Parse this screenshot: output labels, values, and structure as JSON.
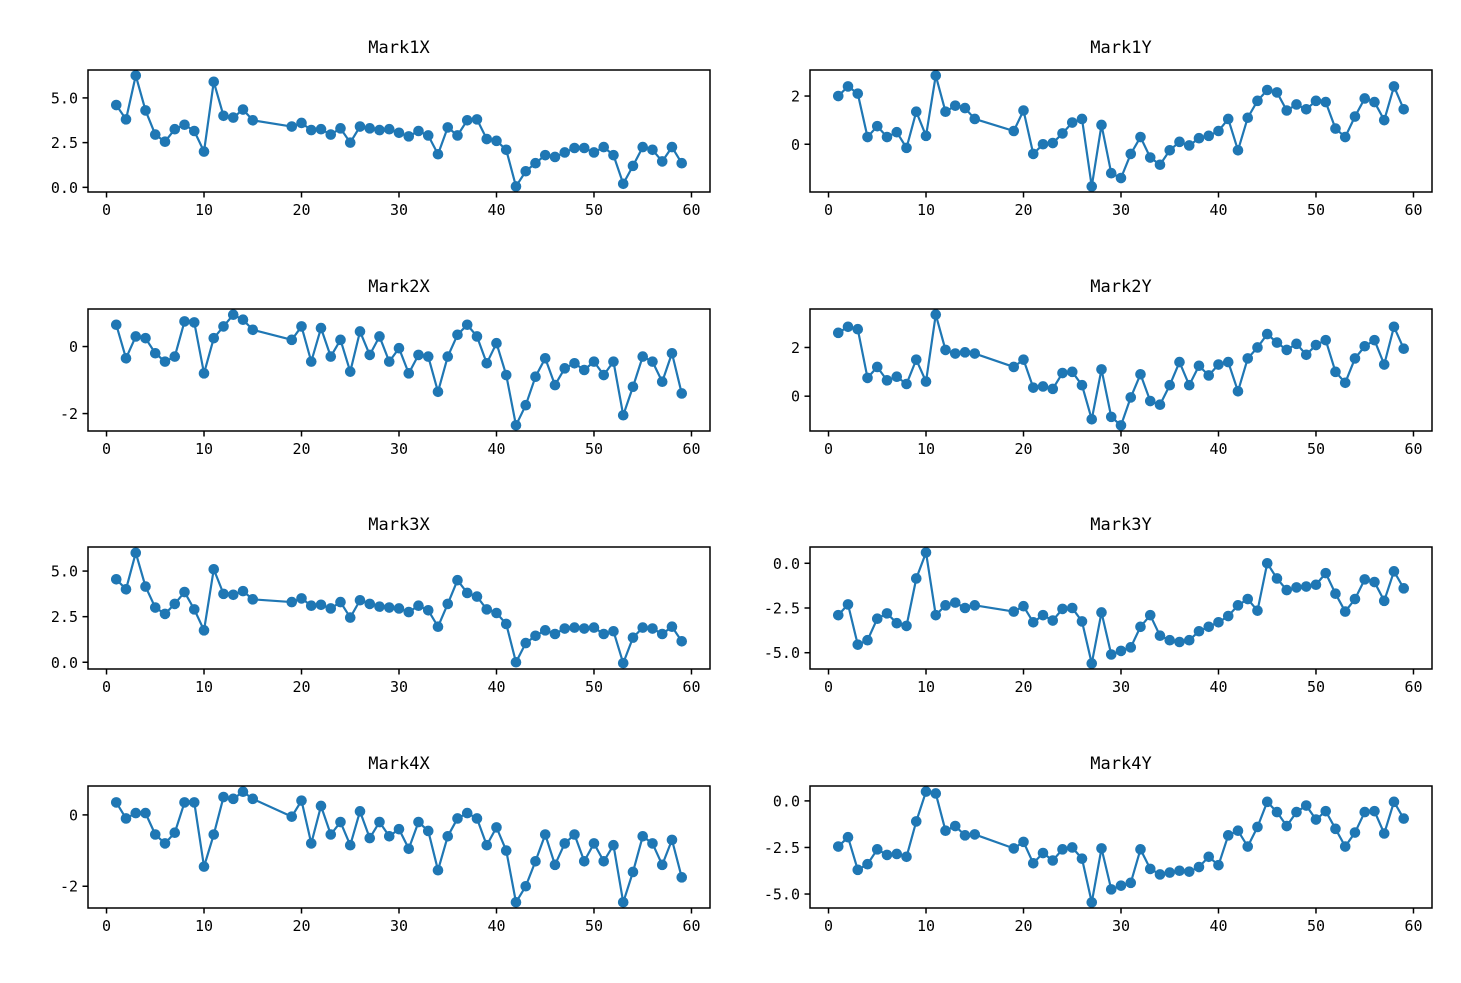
{
  "figure": {
    "background": "#ffffff",
    "accent_color": "#1f77b4",
    "axis_color": "#000000"
  },
  "chart_data": [
    {
      "type": "line",
      "title": "Mark1X",
      "row": 0,
      "col": 0,
      "grid": false,
      "legend": null,
      "xlim": [
        -1.9,
        61.9
      ],
      "ylim": [
        -0.26,
        6.56
      ],
      "xticks": [
        0,
        10,
        20,
        30,
        40,
        50,
        60
      ],
      "xtick_labels": [
        "0",
        "10",
        "20",
        "30",
        "40",
        "50",
        "60"
      ],
      "yticks": [
        0.0,
        2.5,
        5.0
      ],
      "ytick_labels": [
        "0.0",
        "2.5",
        "5.0"
      ],
      "x": [
        1,
        2,
        3,
        4,
        5,
        6,
        7,
        8,
        9,
        10,
        11,
        12,
        13,
        14,
        15,
        19,
        20,
        21,
        22,
        23,
        24,
        25,
        26,
        27,
        28,
        29,
        30,
        31,
        32,
        33,
        34,
        35,
        36,
        37,
        38,
        39,
        40,
        41,
        42,
        43,
        44,
        45,
        46,
        47,
        48,
        49,
        50,
        51,
        52,
        53,
        54,
        55,
        56,
        57,
        58,
        59
      ],
      "y": [
        4.6,
        3.8,
        6.25,
        4.3,
        2.95,
        2.55,
        3.25,
        3.5,
        3.15,
        2.0,
        5.9,
        4.0,
        3.9,
        4.35,
        3.75,
        3.4,
        3.6,
        3.2,
        3.25,
        2.95,
        3.3,
        2.5,
        3.4,
        3.3,
        3.2,
        3.25,
        3.05,
        2.85,
        3.15,
        2.9,
        1.85,
        3.35,
        2.9,
        3.75,
        3.8,
        2.7,
        2.6,
        2.1,
        0.05,
        0.9,
        1.35,
        1.8,
        1.7,
        1.95,
        2.2,
        2.2,
        1.95,
        2.25,
        1.8,
        0.2,
        1.2,
        2.25,
        2.1,
        1.45,
        2.25,
        1.35
      ]
    },
    {
      "type": "line",
      "title": "Mark1Y",
      "row": 0,
      "col": 1,
      "grid": false,
      "legend": null,
      "xlim": [
        -1.9,
        61.9
      ],
      "ylim": [
        -1.98,
        3.08
      ],
      "xticks": [
        0,
        10,
        20,
        30,
        40,
        50,
        60
      ],
      "xtick_labels": [
        "0",
        "10",
        "20",
        "30",
        "40",
        "50",
        "60"
      ],
      "yticks": [
        0,
        2
      ],
      "ytick_labels": [
        "0",
        "2"
      ],
      "x": [
        1,
        2,
        3,
        4,
        5,
        6,
        7,
        8,
        9,
        10,
        11,
        12,
        13,
        14,
        15,
        19,
        20,
        21,
        22,
        23,
        24,
        25,
        26,
        27,
        28,
        29,
        30,
        31,
        32,
        33,
        34,
        35,
        36,
        37,
        38,
        39,
        40,
        41,
        42,
        43,
        44,
        45,
        46,
        47,
        48,
        49,
        50,
        51,
        52,
        53,
        54,
        55,
        56,
        57,
        58,
        59
      ],
      "y": [
        2.0,
        2.4,
        2.1,
        0.3,
        0.75,
        0.3,
        0.5,
        -0.15,
        1.35,
        0.35,
        2.85,
        1.35,
        1.6,
        1.5,
        1.05,
        0.55,
        1.4,
        -0.4,
        0.0,
        0.05,
        0.45,
        0.9,
        1.05,
        -1.75,
        0.8,
        -1.2,
        -1.4,
        -0.4,
        0.3,
        -0.55,
        -0.85,
        -0.25,
        0.1,
        -0.05,
        0.25,
        0.35,
        0.55,
        1.05,
        -0.25,
        1.1,
        1.8,
        2.25,
        2.15,
        1.4,
        1.65,
        1.45,
        1.8,
        1.75,
        0.65,
        0.3,
        1.15,
        1.9,
        1.75,
        1.0,
        2.4,
        1.45
      ]
    },
    {
      "type": "line",
      "title": "Mark2X",
      "row": 1,
      "col": 0,
      "grid": false,
      "legend": null,
      "xlim": [
        -1.9,
        61.9
      ],
      "ylim": [
        -2.52,
        1.12
      ],
      "xticks": [
        0,
        10,
        20,
        30,
        40,
        50,
        60
      ],
      "xtick_labels": [
        "0",
        "10",
        "20",
        "30",
        "40",
        "50",
        "60"
      ],
      "yticks": [
        -2,
        0
      ],
      "ytick_labels": [
        "-2",
        "0"
      ],
      "x": [
        1,
        2,
        3,
        4,
        5,
        6,
        7,
        8,
        9,
        10,
        11,
        12,
        13,
        14,
        15,
        19,
        20,
        21,
        22,
        23,
        24,
        25,
        26,
        27,
        28,
        29,
        30,
        31,
        32,
        33,
        34,
        35,
        36,
        37,
        38,
        39,
        40,
        41,
        42,
        43,
        44,
        45,
        46,
        47,
        48,
        49,
        50,
        51,
        52,
        53,
        54,
        55,
        56,
        57,
        58,
        59
      ],
      "y": [
        0.65,
        -0.35,
        0.3,
        0.25,
        -0.2,
        -0.45,
        -0.3,
        0.75,
        0.72,
        -0.8,
        0.25,
        0.6,
        0.95,
        0.8,
        0.5,
        0.2,
        0.6,
        -0.45,
        0.55,
        -0.3,
        0.2,
        -0.75,
        0.45,
        -0.25,
        0.3,
        -0.45,
        -0.05,
        -0.8,
        -0.25,
        -0.3,
        -1.35,
        -0.3,
        0.35,
        0.65,
        0.3,
        -0.5,
        0.1,
        -0.85,
        -2.35,
        -1.75,
        -0.9,
        -0.35,
        -1.15,
        -0.65,
        -0.5,
        -0.7,
        -0.45,
        -0.85,
        -0.45,
        -2.05,
        -1.2,
        -0.3,
        -0.45,
        -1.05,
        -0.2,
        -1.4
      ]
    },
    {
      "type": "line",
      "title": "Mark2Y",
      "row": 1,
      "col": 1,
      "grid": false,
      "legend": null,
      "xlim": [
        -1.9,
        61.9
      ],
      "ylim": [
        -1.43,
        3.58
      ],
      "xticks": [
        0,
        10,
        20,
        30,
        40,
        50,
        60
      ],
      "xtick_labels": [
        "0",
        "10",
        "20",
        "30",
        "40",
        "50",
        "60"
      ],
      "yticks": [
        0,
        2
      ],
      "ytick_labels": [
        "0",
        "2"
      ],
      "x": [
        1,
        2,
        3,
        4,
        5,
        6,
        7,
        8,
        9,
        10,
        11,
        12,
        13,
        14,
        15,
        19,
        20,
        21,
        22,
        23,
        24,
        25,
        26,
        27,
        28,
        29,
        30,
        31,
        32,
        33,
        34,
        35,
        36,
        37,
        38,
        39,
        40,
        41,
        42,
        43,
        44,
        45,
        46,
        47,
        48,
        49,
        50,
        51,
        52,
        53,
        54,
        55,
        56,
        57,
        58,
        59
      ],
      "y": [
        2.6,
        2.85,
        2.75,
        0.75,
        1.2,
        0.65,
        0.8,
        0.5,
        1.5,
        0.6,
        3.35,
        1.9,
        1.75,
        1.8,
        1.75,
        1.2,
        1.5,
        0.35,
        0.4,
        0.3,
        0.95,
        1.0,
        0.45,
        -0.95,
        1.1,
        -0.85,
        -1.2,
        -0.05,
        0.9,
        -0.2,
        -0.35,
        0.45,
        1.4,
        0.45,
        1.25,
        0.85,
        1.3,
        1.4,
        0.2,
        1.55,
        2.0,
        2.55,
        2.2,
        1.9,
        2.15,
        1.7,
        2.1,
        2.3,
        1.0,
        0.55,
        1.55,
        2.05,
        2.3,
        1.3,
        2.85,
        1.95
      ]
    },
    {
      "type": "line",
      "title": "Mark3X",
      "row": 2,
      "col": 0,
      "grid": false,
      "legend": null,
      "xlim": [
        -1.9,
        61.9
      ],
      "ylim": [
        -0.37,
        6.32
      ],
      "xticks": [
        0,
        10,
        20,
        30,
        40,
        50,
        60
      ],
      "xtick_labels": [
        "0",
        "10",
        "20",
        "30",
        "40",
        "50",
        "60"
      ],
      "yticks": [
        0.0,
        2.5,
        5.0
      ],
      "ytick_labels": [
        "0.0",
        "2.5",
        "5.0"
      ],
      "x": [
        1,
        2,
        3,
        4,
        5,
        6,
        7,
        8,
        9,
        10,
        11,
        12,
        13,
        14,
        15,
        19,
        20,
        21,
        22,
        23,
        24,
        25,
        26,
        27,
        28,
        29,
        30,
        31,
        32,
        33,
        34,
        35,
        36,
        37,
        38,
        39,
        40,
        41,
        42,
        43,
        44,
        45,
        46,
        47,
        48,
        49,
        50,
        51,
        52,
        53,
        54,
        55,
        56,
        57,
        58,
        59
      ],
      "y": [
        4.55,
        4.0,
        6.0,
        4.15,
        3.0,
        2.65,
        3.2,
        3.85,
        2.9,
        1.75,
        5.1,
        3.75,
        3.7,
        3.9,
        3.45,
        3.3,
        3.5,
        3.1,
        3.15,
        2.95,
        3.3,
        2.45,
        3.4,
        3.2,
        3.05,
        3.0,
        2.95,
        2.75,
        3.1,
        2.85,
        1.95,
        3.2,
        4.5,
        3.8,
        3.6,
        2.9,
        2.7,
        2.1,
        0.0,
        1.05,
        1.45,
        1.75,
        1.55,
        1.85,
        1.9,
        1.85,
        1.9,
        1.55,
        1.7,
        -0.05,
        1.35,
        1.9,
        1.85,
        1.55,
        1.95,
        1.15
      ]
    },
    {
      "type": "line",
      "title": "Mark3Y",
      "row": 2,
      "col": 1,
      "grid": false,
      "legend": null,
      "xlim": [
        -1.9,
        61.9
      ],
      "ylim": [
        -5.91,
        0.91
      ],
      "xticks": [
        0,
        10,
        20,
        30,
        40,
        50,
        60
      ],
      "xtick_labels": [
        "0",
        "10",
        "20",
        "30",
        "40",
        "50",
        "60"
      ],
      "yticks": [
        -5.0,
        -2.5,
        0.0
      ],
      "ytick_labels": [
        "-5.0",
        "-2.5",
        "0.0"
      ],
      "x": [
        1,
        2,
        3,
        4,
        5,
        6,
        7,
        8,
        9,
        10,
        11,
        12,
        13,
        14,
        15,
        19,
        20,
        21,
        22,
        23,
        24,
        25,
        26,
        27,
        28,
        29,
        30,
        31,
        32,
        33,
        34,
        35,
        36,
        37,
        38,
        39,
        40,
        41,
        42,
        43,
        44,
        45,
        46,
        47,
        48,
        49,
        50,
        51,
        52,
        53,
        54,
        55,
        56,
        57,
        58,
        59
      ],
      "y": [
        -2.9,
        -2.3,
        -4.55,
        -4.3,
        -3.1,
        -2.8,
        -3.35,
        -3.5,
        -0.85,
        0.6,
        -2.9,
        -2.35,
        -2.2,
        -2.5,
        -2.35,
        -2.7,
        -2.4,
        -3.3,
        -2.9,
        -3.2,
        -2.55,
        -2.5,
        -3.25,
        -5.6,
        -2.75,
        -5.1,
        -4.9,
        -4.7,
        -3.55,
        -2.9,
        -4.05,
        -4.3,
        -4.4,
        -4.3,
        -3.8,
        -3.55,
        -3.3,
        -2.95,
        -2.35,
        -2.0,
        -2.65,
        0.0,
        -0.85,
        -1.5,
        -1.35,
        -1.3,
        -1.2,
        -0.55,
        -1.7,
        -2.7,
        -2.0,
        -0.9,
        -1.05,
        -2.1,
        -0.45,
        -1.4
      ]
    },
    {
      "type": "line",
      "title": "Mark4X",
      "row": 3,
      "col": 0,
      "grid": false,
      "legend": null,
      "xlim": [
        -1.9,
        61.9
      ],
      "ylim": [
        -2.61,
        0.81
      ],
      "xticks": [
        0,
        10,
        20,
        30,
        40,
        50,
        60
      ],
      "xtick_labels": [
        "0",
        "10",
        "20",
        "30",
        "40",
        "50",
        "60"
      ],
      "yticks": [
        -2,
        0
      ],
      "ytick_labels": [
        "-2",
        "0"
      ],
      "x": [
        1,
        2,
        3,
        4,
        5,
        6,
        7,
        8,
        9,
        10,
        11,
        12,
        13,
        14,
        15,
        19,
        20,
        21,
        22,
        23,
        24,
        25,
        26,
        27,
        28,
        29,
        30,
        31,
        32,
        33,
        34,
        35,
        36,
        37,
        38,
        39,
        40,
        41,
        42,
        43,
        44,
        45,
        46,
        47,
        48,
        49,
        50,
        51,
        52,
        53,
        54,
        55,
        56,
        57,
        58,
        59
      ],
      "y": [
        0.35,
        -0.1,
        0.05,
        0.05,
        -0.55,
        -0.8,
        -0.5,
        0.35,
        0.35,
        -1.45,
        -0.55,
        0.5,
        0.45,
        0.65,
        0.45,
        -0.05,
        0.4,
        -0.8,
        0.25,
        -0.55,
        -0.2,
        -0.85,
        0.1,
        -0.65,
        -0.2,
        -0.6,
        -0.4,
        -0.95,
        -0.2,
        -0.45,
        -1.55,
        -0.6,
        -0.1,
        0.05,
        -0.1,
        -0.85,
        -0.35,
        -1.0,
        -2.45,
        -2.0,
        -1.3,
        -0.55,
        -1.4,
        -0.8,
        -0.55,
        -1.3,
        -0.8,
        -1.3,
        -0.85,
        -2.45,
        -1.6,
        -0.6,
        -0.8,
        -1.4,
        -0.7,
        -1.75
      ]
    },
    {
      "type": "line",
      "title": "Mark4Y",
      "row": 3,
      "col": 1,
      "grid": false,
      "legend": null,
      "xlim": [
        -1.9,
        61.9
      ],
      "ylim": [
        -5.75,
        0.8
      ],
      "xticks": [
        0,
        10,
        20,
        30,
        40,
        50,
        60
      ],
      "xtick_labels": [
        "0",
        "10",
        "20",
        "30",
        "40",
        "50",
        "60"
      ],
      "yticks": [
        -5.0,
        -2.5,
        0.0
      ],
      "ytick_labels": [
        "-5.0",
        "-2.5",
        "0.0"
      ],
      "x": [
        1,
        2,
        3,
        4,
        5,
        6,
        7,
        8,
        9,
        10,
        11,
        12,
        13,
        14,
        15,
        19,
        20,
        21,
        22,
        23,
        24,
        25,
        26,
        27,
        28,
        29,
        30,
        31,
        32,
        33,
        34,
        35,
        36,
        37,
        38,
        39,
        40,
        41,
        42,
        43,
        44,
        45,
        46,
        47,
        48,
        49,
        50,
        51,
        52,
        53,
        54,
        55,
        56,
        57,
        58,
        59
      ],
      "y": [
        -2.45,
        -1.95,
        -3.7,
        -3.4,
        -2.6,
        -2.9,
        -2.85,
        -3.0,
        -1.1,
        0.5,
        0.4,
        -1.6,
        -1.35,
        -1.85,
        -1.8,
        -2.55,
        -2.2,
        -3.35,
        -2.8,
        -3.2,
        -2.6,
        -2.5,
        -3.1,
        -5.45,
        -2.55,
        -4.75,
        -4.55,
        -4.4,
        -2.6,
        -3.65,
        -3.95,
        -3.85,
        -3.75,
        -3.8,
        -3.55,
        -3.0,
        -3.45,
        -1.85,
        -1.6,
        -2.45,
        -1.4,
        -0.05,
        -0.6,
        -1.35,
        -0.6,
        -0.25,
        -1.0,
        -0.55,
        -1.5,
        -2.45,
        -1.7,
        -0.6,
        -0.55,
        -1.75,
        -0.05,
        -0.95
      ]
    }
  ]
}
